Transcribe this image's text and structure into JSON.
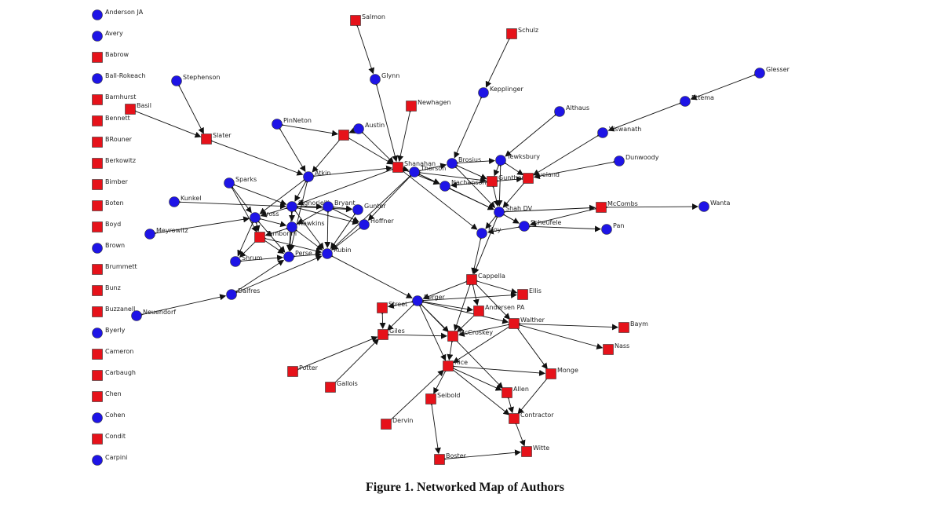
{
  "caption": "Figure 1. Networked Map of Authors",
  "colors": {
    "circle": "#1e14e6",
    "square": "#e6121a",
    "edge": "#111111"
  },
  "isolates": [
    {
      "label": "Anderson JA",
      "shape": "circle"
    },
    {
      "label": "Avery",
      "shape": "circle"
    },
    {
      "label": "Babrow",
      "shape": "square"
    },
    {
      "label": "Ball-Rokeach",
      "shape": "circle"
    },
    {
      "label": "Barnhurst",
      "shape": "square"
    },
    {
      "label": "Bennett",
      "shape": "square"
    },
    {
      "label": "BRouner",
      "shape": "square"
    },
    {
      "label": "Berkowitz",
      "shape": "square"
    },
    {
      "label": "Bimber",
      "shape": "square"
    },
    {
      "label": "Boten",
      "shape": "square"
    },
    {
      "label": "Boyd",
      "shape": "square"
    },
    {
      "label": "Brown",
      "shape": "circle"
    },
    {
      "label": "Brummett",
      "shape": "square"
    },
    {
      "label": "Bunz",
      "shape": "square"
    },
    {
      "label": "Buzzanell",
      "shape": "square"
    },
    {
      "label": "Byerly",
      "shape": "circle"
    },
    {
      "label": "Cameron",
      "shape": "square"
    },
    {
      "label": "Carbaugh",
      "shape": "square"
    },
    {
      "label": "Chen",
      "shape": "square"
    },
    {
      "label": "Cohen",
      "shape": "circle"
    },
    {
      "label": "Condit",
      "shape": "square"
    },
    {
      "label": "Carpini",
      "shape": "circle"
    }
  ],
  "nodes": [
    {
      "id": "Salmon",
      "label": "Salmon",
      "shape": "square"
    },
    {
      "id": "Schulz",
      "label": "Schulz",
      "shape": "square"
    },
    {
      "id": "Glynn",
      "label": "Glynn",
      "shape": "circle"
    },
    {
      "id": "Kepplinger",
      "label": "Kepplinger",
      "shape": "circle"
    },
    {
      "id": "Stephenson",
      "label": "Stephenson",
      "shape": "circle"
    },
    {
      "id": "Basil",
      "label": "Basil",
      "shape": "square"
    },
    {
      "id": "Newhagen",
      "label": "Newhagen",
      "shape": "square"
    },
    {
      "id": "Althaus",
      "label": "Althaus",
      "shape": "circle"
    },
    {
      "id": "Glesser",
      "label": "Glesser",
      "shape": "circle"
    },
    {
      "id": "Ettema",
      "label": "Ettema",
      "shape": "circle"
    },
    {
      "id": "Viswanath",
      "label": "Viswanath",
      "shape": "circle"
    },
    {
      "id": "Dunwoody",
      "label": "Dunwoody",
      "shape": "circle"
    },
    {
      "id": "PinNeton",
      "label": "PinNeton",
      "shape": "circle"
    },
    {
      "id": "Austin",
      "label": "Austin",
      "shape": "circle"
    },
    {
      "id": "Nsq",
      "label": "",
      "shape": "square"
    },
    {
      "id": "Slater",
      "label": "Slater",
      "shape": "square"
    },
    {
      "id": "Shanahan",
      "label": "Shanahan",
      "shape": "square"
    },
    {
      "id": "Thorson",
      "label": "Thorson",
      "shape": "circle"
    },
    {
      "id": "Brosius",
      "label": "Brosius",
      "shape": "circle"
    },
    {
      "id": "Tewksbury",
      "label": "Tewksbury",
      "shape": "circle"
    },
    {
      "id": "Gunther",
      "label": "Gunther",
      "shape": "square"
    },
    {
      "id": "Eveland",
      "label": "Eveland",
      "shape": "square"
    },
    {
      "id": "Nachanson",
      "label": "Nachanson",
      "shape": "circle"
    },
    {
      "id": "Atkin",
      "label": "Atkin",
      "shape": "circle"
    },
    {
      "id": "Sparks",
      "label": "Sparks",
      "shape": "circle"
    },
    {
      "id": "Kunkel",
      "label": "Kunkel",
      "shape": "circle"
    },
    {
      "id": "Signorielli",
      "label": "Signorielli",
      "shape": "circle"
    },
    {
      "id": "Bryant",
      "label": "Bryant",
      "shape": "circle"
    },
    {
      "id": "Gunter",
      "label": "Gunter",
      "shape": "circle"
    },
    {
      "id": "Hoffner",
      "label": "Hoffner",
      "shape": "circle"
    },
    {
      "id": "Gross",
      "label": "Gross",
      "shape": "circle"
    },
    {
      "id": "Hawkins",
      "label": "Hawkins",
      "shape": "circle"
    },
    {
      "id": "Meyrowitz",
      "label": "Meyrowitz",
      "shape": "circle"
    },
    {
      "id": "Tamborini",
      "label": "Tamborini",
      "shape": "square"
    },
    {
      "id": "Shrum",
      "label": "Shrum",
      "shape": "circle"
    },
    {
      "id": "Perse",
      "label": "Perse",
      "shape": "circle"
    },
    {
      "id": "Rubin",
      "label": "Rubin",
      "shape": "circle"
    },
    {
      "id": "Shah",
      "label": "Shah DV",
      "shape": "circle"
    },
    {
      "id": "McCombs",
      "label": "McCombs",
      "shape": "square"
    },
    {
      "id": "Wanta",
      "label": "Wanta",
      "shape": "circle"
    },
    {
      "id": "Moy",
      "label": "Moy",
      "shape": "circle"
    },
    {
      "id": "Scheufele",
      "label": "Scheufele",
      "shape": "circle"
    },
    {
      "id": "Pan",
      "label": "Pan",
      "shape": "circle"
    },
    {
      "id": "Cappella",
      "label": "Cappella",
      "shape": "square"
    },
    {
      "id": "Ellis",
      "label": "Ellis",
      "shape": "square"
    },
    {
      "id": "Berger",
      "label": "Berger",
      "shape": "circle"
    },
    {
      "id": "Street",
      "label": "Street",
      "shape": "square"
    },
    {
      "id": "AndersenPA",
      "label": "Andersen PA",
      "shape": "square"
    },
    {
      "id": "Walther",
      "label": "Walther",
      "shape": "square"
    },
    {
      "id": "Baym",
      "label": "Baym",
      "shape": "square"
    },
    {
      "id": "Nass",
      "label": "Nass",
      "shape": "square"
    },
    {
      "id": "Giles",
      "label": "Giles",
      "shape": "square"
    },
    {
      "id": "McCroskey",
      "label": "McCroskey",
      "shape": "square"
    },
    {
      "id": "Dalfres",
      "label": "Dalfres",
      "shape": "circle"
    },
    {
      "id": "Neuendorf",
      "label": "Neuendorf",
      "shape": "circle"
    },
    {
      "id": "Potter",
      "label": "Potter",
      "shape": "square"
    },
    {
      "id": "Gallois",
      "label": "Gallois",
      "shape": "square"
    },
    {
      "id": "Rice",
      "label": "Rice",
      "shape": "square"
    },
    {
      "id": "Monge",
      "label": "Monge",
      "shape": "square"
    },
    {
      "id": "Allen",
      "label": "Allen",
      "shape": "square"
    },
    {
      "id": "Seibold",
      "label": "Seibold",
      "shape": "square"
    },
    {
      "id": "Contractor",
      "label": "Contractor",
      "shape": "square"
    },
    {
      "id": "Dervin",
      "label": "Dervin",
      "shape": "square"
    },
    {
      "id": "Witte",
      "label": "Witte",
      "shape": "square"
    },
    {
      "id": "Boster",
      "label": "Boster",
      "shape": "square"
    }
  ],
  "edges": [
    [
      "Salmon",
      "Glynn"
    ],
    [
      "Glynn",
      "Shanahan"
    ],
    [
      "Schulz",
      "Kepplinger"
    ],
    [
      "Kepplinger",
      "Brosius"
    ],
    [
      "Stephenson",
      "Slater"
    ],
    [
      "Basil",
      "Slater"
    ],
    [
      "BRouner",
      "Slater"
    ],
    [
      "Slater",
      "Atkin"
    ],
    [
      "Newhagen",
      "Shanahan"
    ],
    [
      "Althaus",
      "Tewksbury"
    ],
    [
      "Glesser",
      "Ettema"
    ],
    [
      "Ettema",
      "Viswanath"
    ],
    [
      "Viswanath",
      "Eveland"
    ],
    [
      "Dunwoody",
      "Eveland"
    ],
    [
      "PinNeton",
      "Nsq"
    ],
    [
      "PinNeton",
      "Atkin"
    ],
    [
      "Austin",
      "Nsq"
    ],
    [
      "Nsq",
      "Atkin"
    ],
    [
      "Nsq",
      "Shanahan"
    ],
    [
      "Austin",
      "Shanahan"
    ],
    [
      "Atkin",
      "Shanahan"
    ],
    [
      "Atkin",
      "Gross"
    ],
    [
      "Atkin",
      "Signorielli"
    ],
    [
      "Atkin",
      "Perse"
    ],
    [
      "Shanahan",
      "Thorson"
    ],
    [
      "Shanahan",
      "Nachanson"
    ],
    [
      "Shanahan",
      "Signorielli"
    ],
    [
      "Shanahan",
      "Moy"
    ],
    [
      "Thorson",
      "Brosius"
    ],
    [
      "Thorson",
      "Gunther"
    ],
    [
      "Thorson",
      "Nachanson"
    ],
    [
      "Thorson",
      "Shah"
    ],
    [
      "Thorson",
      "Hoffner"
    ],
    [
      "Thorson",
      "Rubin"
    ],
    [
      "Brosius",
      "Tewksbury"
    ],
    [
      "Brosius",
      "Gunther"
    ],
    [
      "Brosius",
      "Shah"
    ],
    [
      "Tewksbury",
      "Gunther"
    ],
    [
      "Tewksbury",
      "Eveland"
    ],
    [
      "Tewksbury",
      "Shah"
    ],
    [
      "Gunther",
      "Eveland"
    ],
    [
      "Gunther",
      "Shah"
    ],
    [
      "Gunther",
      "Nachanson"
    ],
    [
      "Eveland",
      "Shah"
    ],
    [
      "Nachanson",
      "Shah"
    ],
    [
      "Shah",
      "Moy"
    ],
    [
      "Shah",
      "Scheufele"
    ],
    [
      "Shah",
      "McCombs"
    ],
    [
      "Shah",
      "Cappella"
    ],
    [
      "McCombs",
      "Wanta"
    ],
    [
      "McCombs",
      "Scheufele"
    ],
    [
      "Scheufele",
      "Pan"
    ],
    [
      "Scheufele",
      "Moy"
    ],
    [
      "Moy",
      "Cappella"
    ],
    [
      "Sparks",
      "Gross"
    ],
    [
      "Sparks",
      "Signorielli"
    ],
    [
      "Sparks",
      "Tamborini"
    ],
    [
      "Kunkel",
      "Signorielli"
    ],
    [
      "Meyrowitz",
      "Gross"
    ],
    [
      "Signorielli",
      "Gross"
    ],
    [
      "Signorielli",
      "Bryant"
    ],
    [
      "Signorielli",
      "Gunter"
    ],
    [
      "Signorielli",
      "Hoffner"
    ],
    [
      "Signorielli",
      "Hawkins"
    ],
    [
      "Signorielli",
      "Perse"
    ],
    [
      "Signorielli",
      "Rubin"
    ],
    [
      "Bryant",
      "Gunter"
    ],
    [
      "Bryant",
      "Hoffner"
    ],
    [
      "Bryant",
      "Rubin"
    ],
    [
      "Bryant",
      "Hawkins"
    ],
    [
      "Gross",
      "Hawkins"
    ],
    [
      "Gross",
      "Tamborini"
    ],
    [
      "Gross",
      "Shrum"
    ],
    [
      "Gross",
      "Perse"
    ],
    [
      "Hawkins",
      "Rubin"
    ],
    [
      "Hawkins",
      "Tamborini"
    ],
    [
      "Hawkins",
      "Perse"
    ],
    [
      "Tamborini",
      "Perse"
    ],
    [
      "Tamborini",
      "Shrum"
    ],
    [
      "Tamborini",
      "Rubin"
    ],
    [
      "Shrum",
      "Perse"
    ],
    [
      "Perse",
      "Rubin"
    ],
    [
      "Gunter",
      "Rubin"
    ],
    [
      "Hoffner",
      "Rubin"
    ],
    [
      "Dalfres",
      "Perse"
    ],
    [
      "Dalfres",
      "Rubin"
    ],
    [
      "Neuendorf",
      "Dalfres"
    ],
    [
      "Rubin",
      "Berger"
    ],
    [
      "Cappella",
      "Ellis"
    ],
    [
      "Cappella",
      "Berger"
    ],
    [
      "Cappella",
      "AndersenPA"
    ],
    [
      "Cappella",
      "Walther"
    ],
    [
      "Cappella",
      "McCroskey"
    ],
    [
      "Berger",
      "Street"
    ],
    [
      "Berger",
      "Giles"
    ],
    [
      "Berger",
      "McCroskey"
    ],
    [
      "Berger",
      "AndersenPA"
    ],
    [
      "Berger",
      "Walther"
    ],
    [
      "Berger",
      "Rice"
    ],
    [
      "Berger",
      "Allen"
    ],
    [
      "Berger",
      "Ellis"
    ],
    [
      "Street",
      "Giles"
    ],
    [
      "AndersenPA",
      "McCroskey"
    ],
    [
      "Walther",
      "Baym"
    ],
    [
      "Walther",
      "Nass"
    ],
    [
      "Walther",
      "Monge"
    ],
    [
      "Walther",
      "McCroskey"
    ],
    [
      "Walther",
      "Rice"
    ],
    [
      "Giles",
      "McCroskey"
    ],
    [
      "Potter",
      "Giles"
    ],
    [
      "Gallois",
      "Giles"
    ],
    [
      "McCroskey",
      "Rice"
    ],
    [
      "Rice",
      "Monge"
    ],
    [
      "Rice",
      "Seibold"
    ],
    [
      "Rice",
      "Contractor"
    ],
    [
      "Rice",
      "Allen"
    ],
    [
      "Monge",
      "Contractor"
    ],
    [
      "Allen",
      "Contractor"
    ],
    [
      "Contractor",
      "Witte"
    ],
    [
      "Seibold",
      "Boster"
    ],
    [
      "Dervin",
      "Rice"
    ],
    [
      "Boster",
      "Witte"
    ]
  ]
}
